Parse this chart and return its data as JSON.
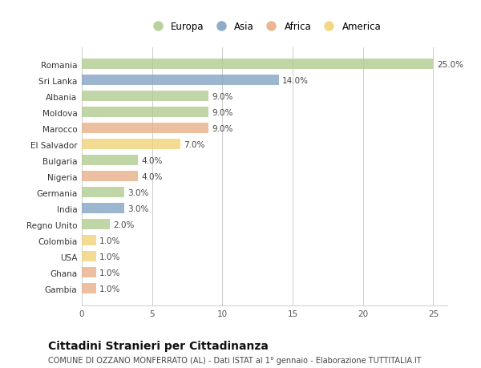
{
  "countries": [
    "Romania",
    "Sri Lanka",
    "Albania",
    "Moldova",
    "Marocco",
    "El Salvador",
    "Bulgaria",
    "Nigeria",
    "Germania",
    "India",
    "Regno Unito",
    "Colombia",
    "USA",
    "Ghana",
    "Gambia"
  ],
  "values": [
    25.0,
    14.0,
    9.0,
    9.0,
    9.0,
    7.0,
    4.0,
    4.0,
    3.0,
    3.0,
    2.0,
    1.0,
    1.0,
    1.0,
    1.0
  ],
  "continents": [
    "Europa",
    "Asia",
    "Europa",
    "Europa",
    "Africa",
    "America",
    "Europa",
    "Africa",
    "Europa",
    "Asia",
    "Europa",
    "America",
    "America",
    "Africa",
    "Africa"
  ],
  "colors": {
    "Europa": "#adc98a",
    "Asia": "#7b9ec0",
    "Africa": "#e8aa82",
    "America": "#f0d070"
  },
  "background_color": "#ffffff",
  "plot_background": "#ffffff",
  "title": "Cittadini Stranieri per Cittadinanza",
  "subtitle": "COMUNE DI OZZANO MONFERRATO (AL) - Dati ISTAT al 1° gennaio - Elaborazione TUTTITALIA.IT",
  "xlim": [
    0,
    26
  ],
  "xticks": [
    0,
    5,
    10,
    15,
    20,
    25
  ],
  "bar_height": 0.65,
  "label_fontsize": 7.5,
  "tick_fontsize": 7.5,
  "title_fontsize": 10,
  "subtitle_fontsize": 7
}
